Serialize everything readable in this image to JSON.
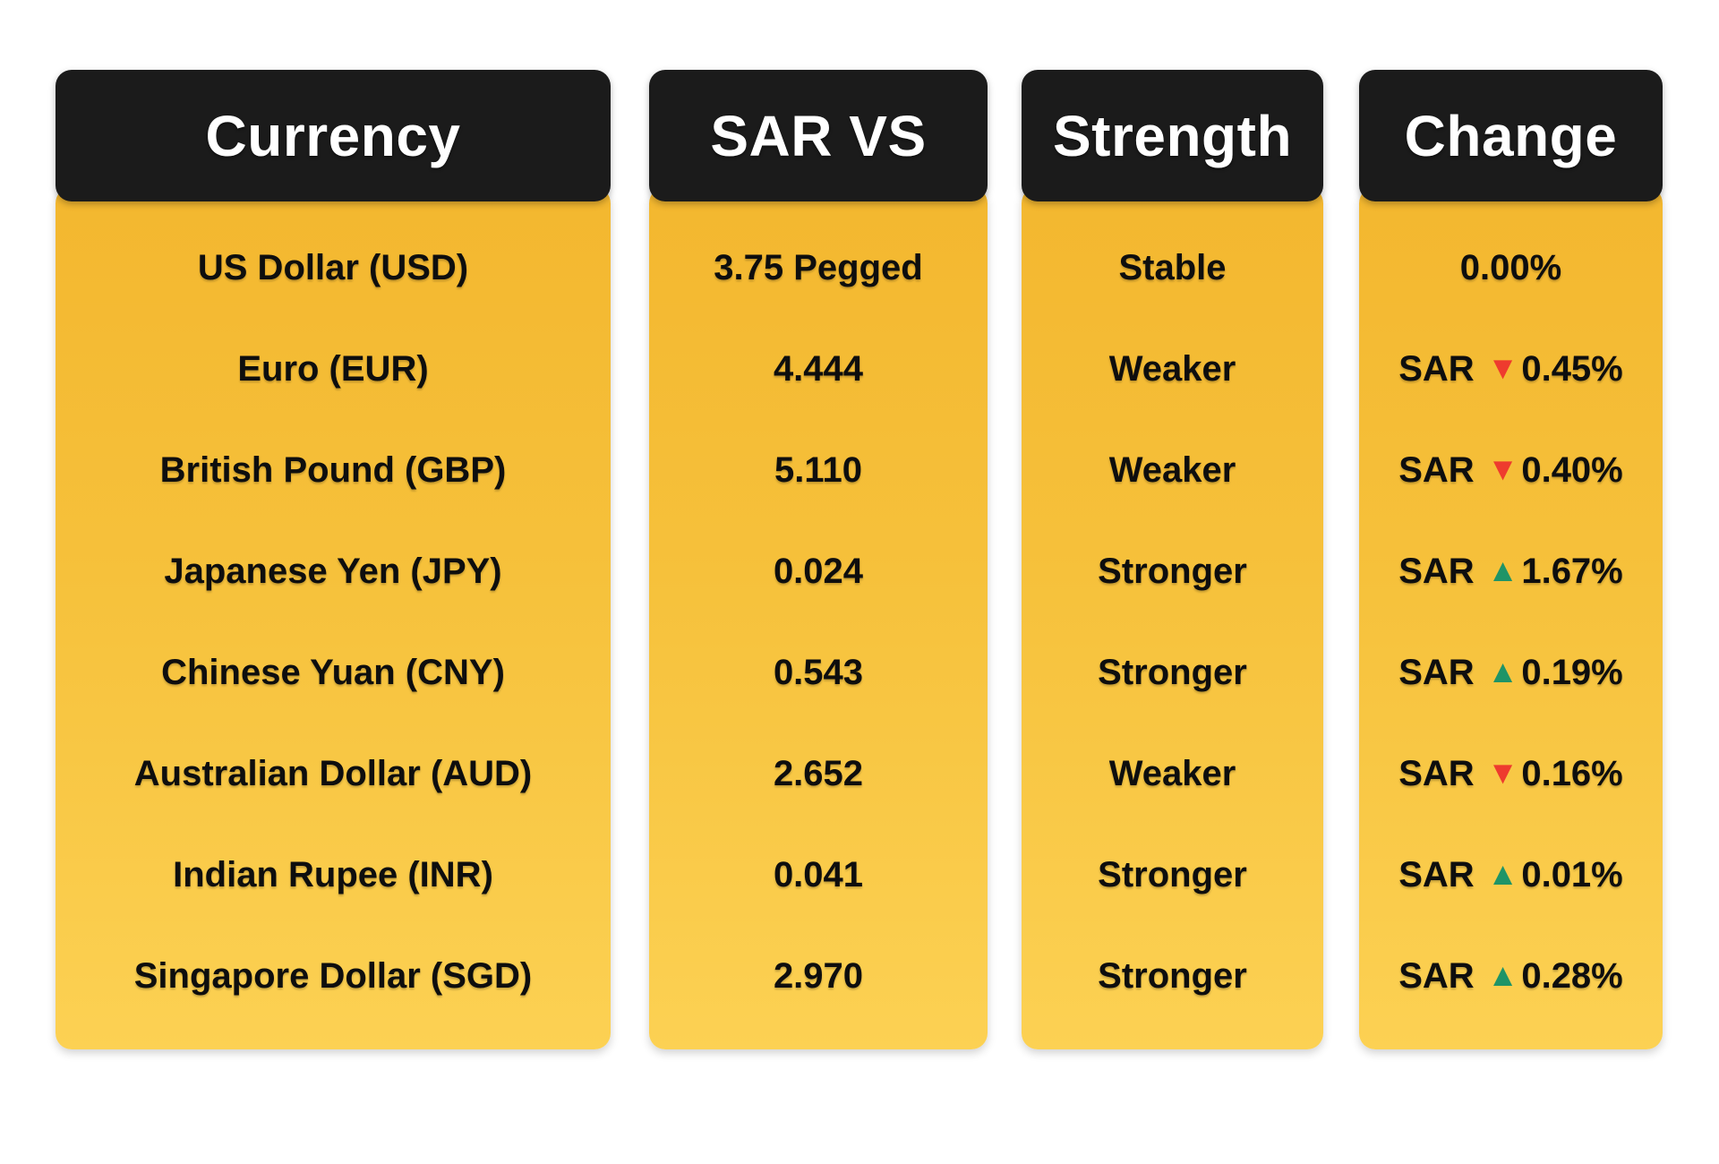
{
  "colors": {
    "header_bg": "#1b1b1b",
    "header_text": "#ffffff",
    "body_gradient_top": "#f3b72f",
    "body_gradient_bottom": "#fcd153",
    "row_text": "#0e0e0e",
    "down_red": "#ee3b2e",
    "up_green": "#1f9467",
    "page_bg": "#ffffff"
  },
  "icons": {
    "up": "▲",
    "down": "▼"
  },
  "table": {
    "columns": [
      {
        "label": "Currency"
      },
      {
        "label": "SAR VS"
      },
      {
        "label": "Strength"
      },
      {
        "label": "Change"
      }
    ],
    "rows": [
      {
        "currency": "US Dollar (USD)",
        "sar_vs": "3.75 Pegged",
        "strength": "Stable",
        "change": {
          "prefix": "",
          "direction": "none",
          "value": "0.00%"
        }
      },
      {
        "currency": "Euro (EUR)",
        "sar_vs": "4.444",
        "strength": "Weaker",
        "change": {
          "prefix": "SAR",
          "direction": "down",
          "value": "0.45%"
        }
      },
      {
        "currency": "British Pound (GBP)",
        "sar_vs": "5.110",
        "strength": "Weaker",
        "change": {
          "prefix": "SAR",
          "direction": "down",
          "value": "0.40%"
        }
      },
      {
        "currency": "Japanese Yen (JPY)",
        "sar_vs": "0.024",
        "strength": "Stronger",
        "change": {
          "prefix": "SAR",
          "direction": "up",
          "value": "1.67%"
        }
      },
      {
        "currency": "Chinese Yuan (CNY)",
        "sar_vs": "0.543",
        "strength": "Stronger",
        "change": {
          "prefix": "SAR",
          "direction": "up",
          "value": "0.19%"
        }
      },
      {
        "currency": "Australian Dollar (AUD)",
        "sar_vs": "2.652",
        "strength": "Weaker",
        "change": {
          "prefix": "SAR",
          "direction": "down",
          "value": "0.16%"
        }
      },
      {
        "currency": "Indian Rupee (INR)",
        "sar_vs": "0.041",
        "strength": "Stronger",
        "change": {
          "prefix": "SAR",
          "direction": "up",
          "value": "0.01%"
        }
      },
      {
        "currency": "Singapore Dollar (SGD)",
        "sar_vs": "2.970",
        "strength": "Stronger",
        "change": {
          "prefix": "SAR",
          "direction": "up",
          "value": "0.28%"
        }
      }
    ]
  },
  "chart_data": {
    "type": "table",
    "title": "SAR exchange rate comparison",
    "columns": [
      "Currency",
      "SAR VS",
      "Strength",
      "Change"
    ],
    "rows": [
      [
        "US Dollar (USD)",
        "3.75 Pegged",
        "Stable",
        "0.00%"
      ],
      [
        "Euro (EUR)",
        "4.444",
        "Weaker",
        "SAR ▼0.45%"
      ],
      [
        "British Pound (GBP)",
        "5.110",
        "Weaker",
        "SAR ▼0.40%"
      ],
      [
        "Japanese Yen (JPY)",
        "0.024",
        "Stronger",
        "SAR ▲1.67%"
      ],
      [
        "Chinese Yuan (CNY)",
        "0.543",
        "Stronger",
        "SAR ▲0.19%"
      ],
      [
        "Australian Dollar (AUD)",
        "2.652",
        "Weaker",
        "SAR ▼0.16%"
      ],
      [
        "Indian Rupee (INR)",
        "0.041",
        "Stronger",
        "SAR ▲0.01%"
      ],
      [
        "Singapore Dollar (SGD)",
        "2.970",
        "Stronger",
        "SAR ▲0.28%"
      ]
    ]
  }
}
